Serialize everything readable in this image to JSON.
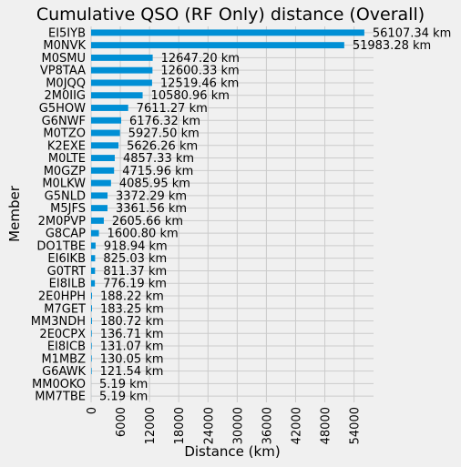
{
  "chart_data": {
    "type": "bar",
    "orientation": "horizontal",
    "title": "Cumulative QSO (RF Only) distance (Overall)",
    "xlabel": "Distance (km)",
    "ylabel": "Member",
    "xlim": [
      0,
      58000
    ],
    "xticks": [
      0,
      6000,
      12000,
      18000,
      24000,
      30000,
      36000,
      42000,
      48000,
      54000
    ],
    "grid": true,
    "bar_color": "#008fd5",
    "background": "#f0f0f0",
    "categories": [
      "EI5IYB",
      "M0NVK",
      "M0SMU",
      "VP8TAA",
      "M0JQQ",
      "2M0IIG",
      "G5HOW",
      "G6NWF",
      "M0TZO",
      "K2EXE",
      "M0LTE",
      "M0GZP",
      "M0LKW",
      "G5NLD",
      "M5JFS",
      "2M0PVP",
      "G8CAP",
      "DO1TBE",
      "EI6IKB",
      "G0TRT",
      "EI8ILB",
      "2E0HPH",
      "M7GET",
      "MM3NDH",
      "2E0CPX",
      "EI8ICB",
      "M1MBZ",
      "G6AWK",
      "MM0OKO",
      "MM7TBE"
    ],
    "values": [
      56107.34,
      51983.28,
      12647.2,
      12600.33,
      12519.46,
      10580.96,
      7611.27,
      6176.32,
      5927.5,
      5626.26,
      4857.33,
      4715.96,
      4085.95,
      3372.29,
      3361.56,
      2605.66,
      1600.8,
      918.94,
      825.03,
      811.37,
      776.19,
      188.22,
      183.25,
      180.72,
      136.71,
      131.07,
      130.05,
      121.54,
      5.19,
      5.19
    ],
    "labels": [
      "56107.34 km",
      "51983.28 km",
      "12647.20 km",
      "12600.33 km",
      "12519.46 km",
      "10580.96 km",
      "7611.27 km",
      "6176.32 km",
      "5927.50 km",
      "5626.26 km",
      "4857.33 km",
      "4715.96 km",
      "4085.95 km",
      "3372.29 km",
      "3361.56 km",
      "2605.66 km",
      "1600.80 km",
      "918.94 km",
      "825.03 km",
      "811.37 km",
      "776.19 km",
      "188.22 km",
      "183.25 km",
      "180.72 km",
      "136.71 km",
      "131.07 km",
      "130.05 km",
      "121.54 km",
      "5.19 km",
      "5.19 km"
    ]
  }
}
